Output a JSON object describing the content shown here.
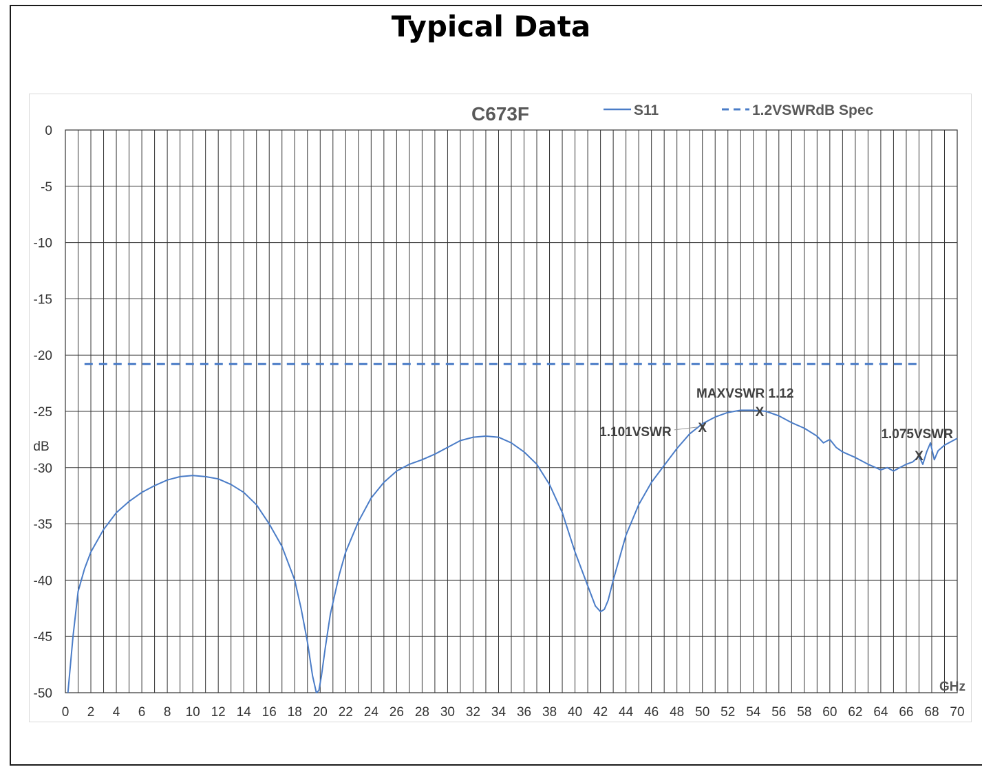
{
  "page": {
    "title": "Typical Data"
  },
  "chart_data": {
    "type": "line",
    "title": "C673F",
    "xlabel": "GHz",
    "ylabel": "dB",
    "xlim": [
      0,
      70
    ],
    "ylim": [
      -50,
      0
    ],
    "x_ticks": [
      0,
      2,
      4,
      6,
      8,
      10,
      12,
      14,
      16,
      18,
      20,
      22,
      24,
      26,
      28,
      30,
      32,
      34,
      36,
      38,
      40,
      42,
      44,
      46,
      48,
      50,
      52,
      54,
      56,
      58,
      60,
      62,
      64,
      66,
      68,
      70
    ],
    "y_ticks": [
      0,
      -5,
      -10,
      -15,
      -20,
      -25,
      -30,
      -35,
      -40,
      -45,
      -50
    ],
    "grid": true,
    "legend_position": "top",
    "series": [
      {
        "name": "S11",
        "style": "solid",
        "color": "#4a7cc7",
        "x": [
          0.2,
          0.6,
          1.0,
          1.5,
          2.0,
          3.0,
          4.0,
          5.0,
          6.0,
          7.0,
          8.0,
          9.0,
          10.0,
          11.0,
          12.0,
          13.0,
          14.0,
          15.0,
          16.0,
          17.0,
          18.0,
          18.5,
          19.0,
          19.4,
          19.7,
          19.9,
          20.1,
          20.4,
          20.8,
          21.5,
          22.0,
          23.0,
          24.0,
          25.0,
          26.0,
          27.0,
          28.0,
          29.0,
          30.0,
          31.0,
          32.0,
          33.0,
          34.0,
          35.0,
          36.0,
          37.0,
          38.0,
          39.0,
          40.0,
          41.0,
          41.6,
          42.0,
          42.3,
          42.6,
          43.0,
          43.5,
          44.0,
          45.0,
          46.0,
          47.0,
          48.0,
          49.0,
          50.0,
          51.0,
          52.0,
          53.0,
          54.0,
          55.0,
          56.0,
          57.0,
          58.0,
          59.0,
          59.5,
          60.0,
          60.5,
          61.0,
          62.0,
          63.0,
          64.0,
          64.5,
          65.0,
          65.5,
          66.0,
          66.5,
          67.0,
          67.3,
          67.6,
          67.9,
          68.2,
          68.5,
          69.0,
          70.0
        ],
        "y": [
          -50,
          -45,
          -41,
          -39,
          -37.5,
          -35.5,
          -34,
          -33,
          -32.2,
          -31.6,
          -31.1,
          -30.8,
          -30.7,
          -30.8,
          -31.0,
          -31.5,
          -32.2,
          -33.3,
          -35.0,
          -37.0,
          -40.0,
          -42.5,
          -45.5,
          -48.5,
          -50.0,
          -49.8,
          -48.5,
          -46.0,
          -43.0,
          -39.5,
          -37.5,
          -34.8,
          -32.7,
          -31.3,
          -30.3,
          -29.7,
          -29.3,
          -28.8,
          -28.2,
          -27.6,
          -27.3,
          -27.2,
          -27.3,
          -27.8,
          -28.6,
          -29.7,
          -31.5,
          -34.0,
          -37.5,
          -40.5,
          -42.3,
          -42.8,
          -42.6,
          -41.8,
          -40.0,
          -38.0,
          -36.0,
          -33.3,
          -31.3,
          -29.8,
          -28.3,
          -27.0,
          -26.1,
          -25.5,
          -25.1,
          -24.9,
          -24.9,
          -25.0,
          -25.4,
          -26.0,
          -26.5,
          -27.2,
          -27.8,
          -27.5,
          -28.2,
          -28.6,
          -29.1,
          -29.7,
          -30.2,
          -30.0,
          -30.3,
          -30.0,
          -29.7,
          -29.5,
          -29.0,
          -29.7,
          -28.6,
          -27.8,
          -29.3,
          -28.5,
          -28.0,
          -27.4
        ]
      },
      {
        "name": "1.2VSWRdB Spec",
        "style": "dashed",
        "color": "#4a7cc7",
        "x": [
          1.5,
          67
        ],
        "y": [
          -20.8,
          -20.8
        ]
      }
    ],
    "annotations": [
      {
        "text": "MAXVSWR 1.12",
        "x": 54.5,
        "y": -25.0,
        "marker": "X"
      },
      {
        "text": "1.101VSWR",
        "x": 50.0,
        "y": -26.4,
        "marker": "X"
      },
      {
        "text": "1.075VSWR",
        "x": 67.0,
        "y": -28.9,
        "marker": "X"
      }
    ]
  }
}
